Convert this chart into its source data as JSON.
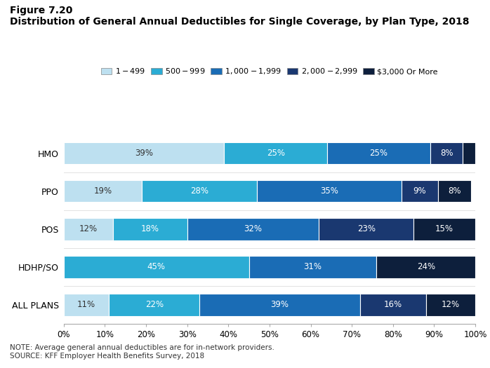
{
  "title_line1": "Figure 7.20",
  "title_line2": "Distribution of General Annual Deductibles for Single Coverage, by Plan Type, 2018",
  "note_line1": "NOTE: Average general annual deductibles are for in-network providers.",
  "note_line2": "SOURCE: KFF Employer Health Benefits Survey, 2018",
  "categories": [
    "HMO",
    "PPO",
    "POS",
    "HDHP/SO",
    "ALL PLANS"
  ],
  "seg_labels": [
    "$1 - $499",
    "$500 - $999",
    "$1,000 - $1,999",
    "$2,000 - $2,999",
    "$3,000 Or More"
  ],
  "seg_colors": [
    "#bde0f0",
    "#34aadc",
    "#1a6faf",
    "#1a3a6b",
    "#0d1f3c"
  ],
  "seg_data": [
    [
      39,
      0,
      25,
      25,
      8,
      3
    ],
    [
      19,
      28,
      0,
      35,
      9,
      8
    ],
    [
      12,
      18,
      0,
      32,
      23,
      15
    ],
    [
      0,
      45,
      0,
      31,
      0,
      24
    ],
    [
      11,
      22,
      0,
      39,
      16,
      12
    ]
  ],
  "seg_colors_6": [
    "#bde0f0",
    "#34aadc",
    "#34aadc",
    "#1a6faf",
    "#1a3a6b",
    "#0d1f3c"
  ],
  "bar_height": 0.58,
  "figsize": [
    6.98,
    5.25
  ],
  "dpi": 100
}
